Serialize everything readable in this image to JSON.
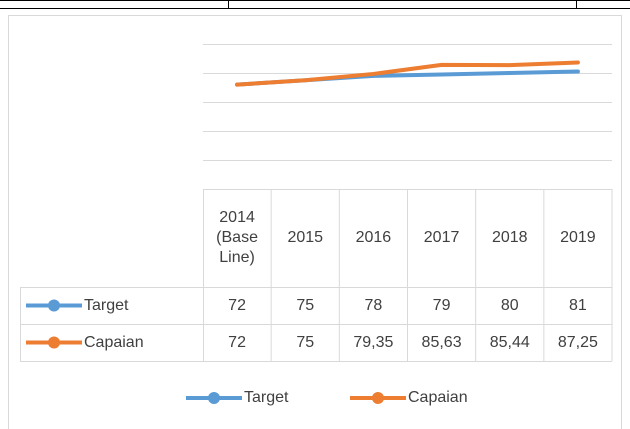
{
  "chart_data": {
    "type": "line",
    "categories": [
      "2014 (Base Line)",
      "2015",
      "2016",
      "2017",
      "2018",
      "2019"
    ],
    "series": [
      {
        "name": "Target",
        "color": "#5b9bd5",
        "values": [
          72,
          75,
          78,
          79,
          80,
          81
        ],
        "value_labels": [
          "72",
          "75",
          "78",
          "79",
          "80",
          "81"
        ]
      },
      {
        "name": "Capaian",
        "color": "#ed7d31",
        "values": [
          72,
          75,
          79.35,
          85.63,
          85.44,
          87.25
        ],
        "value_labels": [
          "72",
          "75",
          "79,35",
          "85,63",
          "85,44",
          "87,25"
        ]
      }
    ],
    "ylim": [
      0,
      100
    ],
    "yticks": [
      0,
      20,
      40,
      60,
      80,
      100
    ],
    "grid": true,
    "legend": "bottom"
  }
}
